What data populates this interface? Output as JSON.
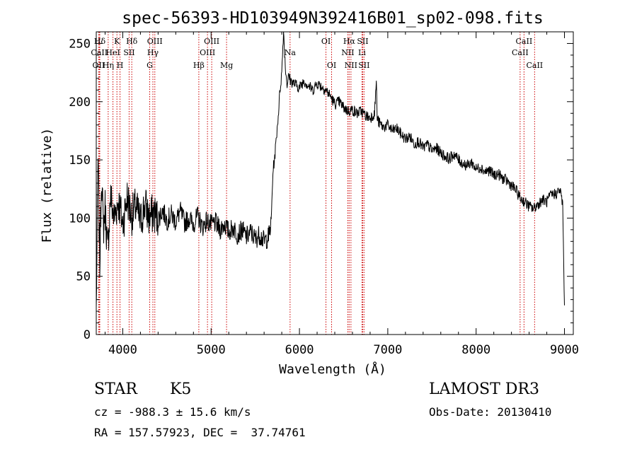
{
  "chart_data": {
    "type": "line",
    "title": "spec-56393-HD103949N392416B01_sp02-098.fits",
    "xlabel": "Wavelength (Å)",
    "ylabel": "Flux (relative)",
    "xlim": [
      3700,
      9100
    ],
    "ylim": [
      0,
      260
    ],
    "xticks": [
      4000,
      5000,
      6000,
      7000,
      8000,
      9000
    ],
    "yticks": [
      0,
      50,
      100,
      150,
      200,
      250
    ],
    "grid": false,
    "series": [
      {
        "name": "flux",
        "x": [
          3700,
          3720,
          3740,
          3760,
          3780,
          3800,
          3830,
          3860,
          3900,
          3950,
          4000,
          4050,
          4100,
          4150,
          4200,
          4250,
          4300,
          4350,
          4400,
          4450,
          4500,
          4550,
          4600,
          4650,
          4700,
          4750,
          4800,
          4850,
          4900,
          4950,
          5000,
          5050,
          5100,
          5150,
          5200,
          5250,
          5300,
          5350,
          5400,
          5450,
          5500,
          5550,
          5600,
          5650,
          5680,
          5700,
          5720,
          5740,
          5760,
          5780,
          5800,
          5820,
          5840,
          5860,
          5880,
          5900,
          5950,
          6000,
          6050,
          6100,
          6150,
          6200,
          6250,
          6300,
          6350,
          6400,
          6450,
          6500,
          6550,
          6600,
          6650,
          6700,
          6750,
          6800,
          6850,
          6870,
          6880,
          6900,
          6950,
          7000,
          7050,
          7100,
          7150,
          7200,
          7250,
          7300,
          7350,
          7400,
          7450,
          7500,
          7550,
          7600,
          7650,
          7700,
          7750,
          7800,
          7850,
          7900,
          7950,
          8000,
          8050,
          8100,
          8150,
          8200,
          8250,
          8300,
          8350,
          8400,
          8450,
          8500,
          8550,
          8600,
          8650,
          8700,
          8750,
          8800,
          8850,
          8900,
          8950,
          8980,
          9000
        ],
        "y": [
          20,
          150,
          60,
          140,
          90,
          110,
          70,
          120,
          100,
          115,
          95,
          118,
          102,
          110,
          96,
          112,
          100,
          105,
          99,
          107,
          98,
          103,
          97,
          106,
          96,
          100,
          95,
          102,
          92,
          98,
          94,
          96,
          90,
          95,
          88,
          92,
          86,
          90,
          84,
          88,
          82,
          86,
          80,
          84,
          95,
          140,
          152,
          170,
          188,
          210,
          225,
          262,
          230,
          215,
          222,
          218,
          215,
          212,
          218,
          214,
          210,
          216,
          213,
          210,
          205,
          198,
          200,
          195,
          192,
          193,
          190,
          192,
          188,
          186,
          190,
          218,
          186,
          182,
          178,
          180,
          175,
          177,
          172,
          168,
          170,
          164,
          166,
          160,
          163,
          158,
          160,
          156,
          153,
          151,
          155,
          150,
          147,
          145,
          148,
          142,
          144,
          140,
          141,
          137,
          138,
          134,
          132,
          128,
          124,
          117,
          114,
          110,
          108,
          112,
          116,
          114,
          120,
          121,
          124,
          112,
          25
        ]
      }
    ],
    "line_markers": [
      {
        "label": "Hδ",
        "x": 3740,
        "row": 1
      },
      {
        "label": "CaII",
        "x": 3734,
        "row": 2
      },
      {
        "label": "OII",
        "x": 3727,
        "row": 3
      },
      {
        "label": "K",
        "x": 3934,
        "row": 1
      },
      {
        "label": "HeI",
        "x": 3889,
        "row": 2
      },
      {
        "label": "Hη",
        "x": 3835,
        "row": 3
      },
      {
        "label": "Hδ",
        "x": 4102,
        "row": 1
      },
      {
        "label": "SII",
        "x": 4072,
        "row": 2
      },
      {
        "label": "H",
        "x": 3969,
        "row": 3
      },
      {
        "label": "OIII",
        "x": 4363,
        "row": 1
      },
      {
        "label": "Hγ",
        "x": 4341,
        "row": 2
      },
      {
        "label": "G",
        "x": 4305,
        "row": 3
      },
      {
        "label": "OIII",
        "x": 5007,
        "row": 1
      },
      {
        "label": "OIII",
        "x": 4959,
        "row": 2
      },
      {
        "label": "Hβ",
        "x": 4861,
        "row": 3
      },
      {
        "label": "Mg",
        "x": 5175,
        "row": 3
      },
      {
        "label": "Na",
        "x": 5894,
        "row": 2
      },
      {
        "label": "OI",
        "x": 6300,
        "row": 1
      },
      {
        "label": "OI",
        "x": 6364,
        "row": 3
      },
      {
        "label": "Hα",
        "x": 6563,
        "row": 1
      },
      {
        "label": "SII",
        "x": 6716,
        "row": 1
      },
      {
        "label": "NII",
        "x": 6548,
        "row": 2
      },
      {
        "label": "Li",
        "x": 6708,
        "row": 2
      },
      {
        "label": "NII",
        "x": 6583,
        "row": 3
      },
      {
        "label": "SII",
        "x": 6731,
        "row": 3
      },
      {
        "label": "CaII",
        "x": 8542,
        "row": 1
      },
      {
        "label": "CaII",
        "x": 8498,
        "row": 2
      },
      {
        "label": "CaII",
        "x": 8662,
        "row": 3
      }
    ],
    "marker_color": "#cc0000"
  },
  "info": {
    "object_class": "STAR",
    "subclass": "K5",
    "survey": "LAMOST DR3",
    "cz": "cz = -988.3 ± 15.6 km/s",
    "obs_date": "Obs-Date: 20130410",
    "coords": "RA = 157.57923, DEC =  37.74761"
  }
}
